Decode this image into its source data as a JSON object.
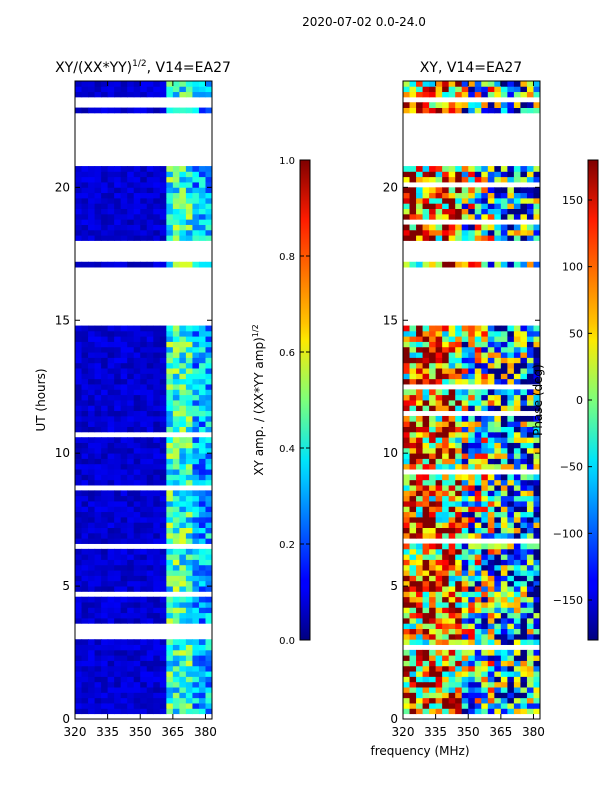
{
  "figure_title": "2020-07-02 0.0-24.0",
  "shared_xlabel": "frequency (MHz)",
  "chart_data": [
    {
      "type": "heatmap",
      "title_main": "XY/(XX*YY)",
      "title_sup": "1/2",
      "title_tail": ", V14=EA27",
      "ylabel": "UT (hours)",
      "xlim": [
        320,
        383
      ],
      "ylim": [
        0,
        24
      ],
      "x_ticks": [
        320,
        335,
        350,
        365,
        380
      ],
      "y_ticks": [
        0,
        5,
        10,
        15,
        20
      ],
      "colorbar": {
        "label_main": "XY amp. / (XX*YY amp)",
        "label_sup": "1/2",
        "range": [
          0,
          1
        ],
        "ticks": [
          "0.0",
          "0.2",
          "0.4",
          "0.6",
          "0.8",
          "1.0"
        ],
        "tick_values": [
          0,
          0.2,
          0.4,
          0.6,
          0.8,
          1.0
        ]
      },
      "data_gaps_hours": [
        [
          3.0,
          3.5
        ],
        [
          14.8,
          17.0
        ],
        [
          17.1,
          18.0
        ],
        [
          20.7,
          22.6
        ],
        [
          23.2,
          23.35
        ]
      ],
      "band_structure": [
        {
          "x": [
            320,
            363
          ],
          "level": 0.08
        },
        {
          "x": [
            363,
            372
          ],
          "level": 0.45
        },
        {
          "x": [
            372,
            383
          ],
          "level": 0.35
        }
      ]
    },
    {
      "type": "heatmap",
      "title": "XY, V14=EA27",
      "ylabel": "",
      "xlim": [
        320,
        383
      ],
      "ylim": [
        0,
        24
      ],
      "x_ticks": [
        320,
        335,
        350,
        365,
        380
      ],
      "y_ticks": [
        0,
        5,
        10,
        15,
        20
      ],
      "colorbar": {
        "label": "Phase (deg)",
        "range": [
          -180,
          180
        ],
        "ticks": [
          "150",
          "100",
          "50",
          "0",
          "−50",
          "−100",
          "−150"
        ],
        "tick_values": [
          150,
          100,
          50,
          0,
          -50,
          -100,
          -150
        ]
      },
      "data_gaps_hours": [
        [
          14.8,
          17.0
        ],
        [
          17.1,
          17.9
        ],
        [
          20.7,
          22.6
        ],
        [
          23.2,
          23.35
        ]
      ]
    }
  ]
}
